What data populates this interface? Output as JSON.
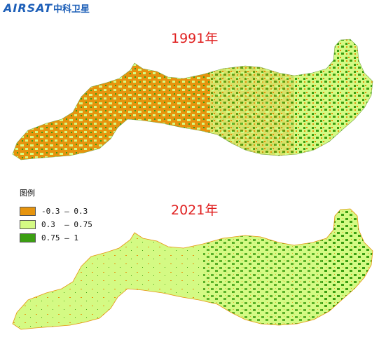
{
  "brand": {
    "latin": "AIRSAT",
    "cn": "中科卫星"
  },
  "maps": [
    {
      "year_label": "1991年"
    },
    {
      "year_label": "2021年"
    }
  ],
  "legend": {
    "title": "图例",
    "classes": [
      {
        "label": "-0.3 — 0.3",
        "color": "#e6940e"
      },
      {
        "label": "0.3  — 0.75",
        "color": "#d4fa84"
      },
      {
        "label": "0.75 — 1",
        "color": "#3b9f12"
      }
    ]
  }
}
